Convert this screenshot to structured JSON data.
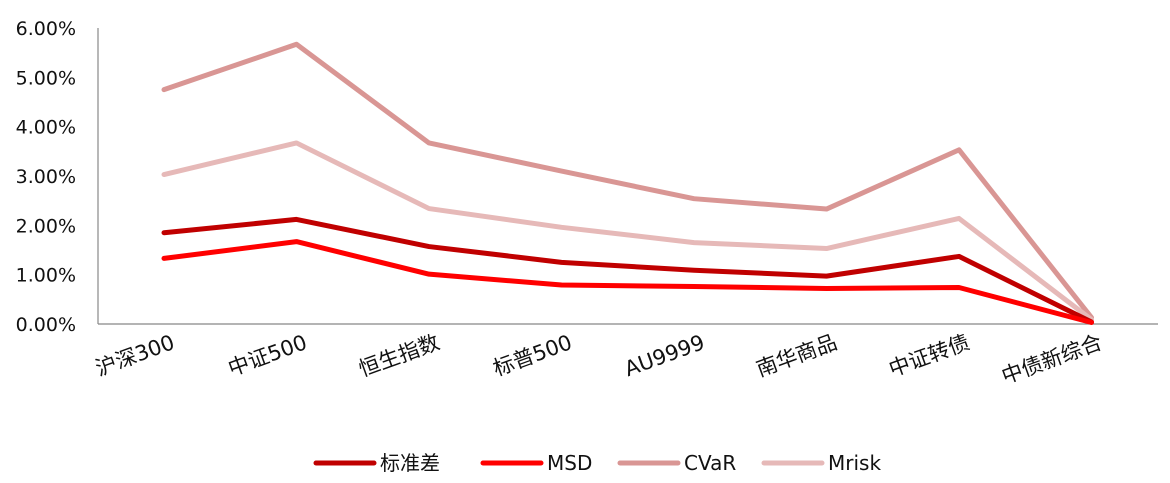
{
  "chart_data": {
    "type": "line",
    "categories": [
      "沪深300",
      "中证500",
      "恒生指数",
      "标普500",
      "AU9999",
      "南华商品",
      "中证转债",
      "中债新综合"
    ],
    "y_tick_labels": [
      "0.00%",
      "1.00%",
      "2.00%",
      "3.00%",
      "4.00%",
      "5.00%",
      "6.00%"
    ],
    "ylim": [
      0,
      6
    ],
    "y_unit": "%",
    "grid": false,
    "legend_position": "bottom",
    "title": "",
    "xlabel": "",
    "ylabel": "",
    "series": [
      {
        "name": "标准差",
        "color": "#C00000",
        "values": [
          1.85,
          2.12,
          1.57,
          1.25,
          1.09,
          0.97,
          1.37,
          0.04
        ]
      },
      {
        "name": "MSD",
        "color": "#FF0000",
        "values": [
          1.33,
          1.67,
          1.01,
          0.79,
          0.76,
          0.72,
          0.74,
          0.03
        ]
      },
      {
        "name": "CVaR",
        "color": "#D99694",
        "values": [
          4.75,
          5.67,
          3.67,
          3.1,
          2.54,
          2.33,
          3.53,
          0.13
        ]
      },
      {
        "name": "Mrisk",
        "color": "#E6B9B8",
        "values": [
          3.03,
          3.67,
          2.34,
          1.96,
          1.65,
          1.53,
          2.14,
          0.09
        ]
      }
    ]
  }
}
